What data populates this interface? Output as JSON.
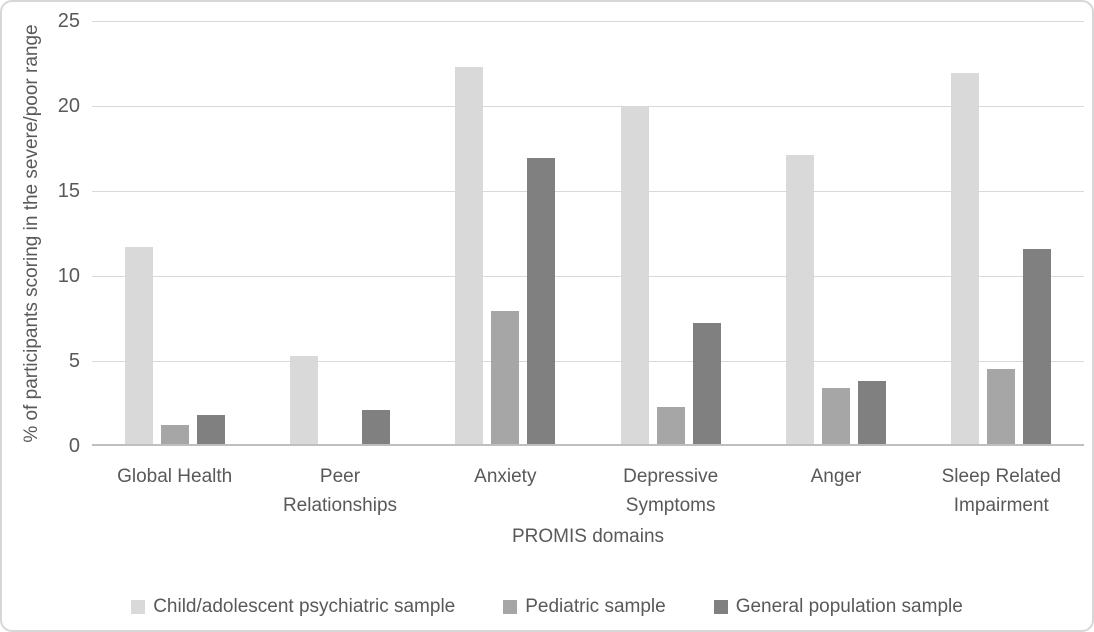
{
  "chart_data": {
    "type": "bar",
    "title": "",
    "xlabel": "PROMIS domains",
    "ylabel": "% of participants scoring in the severe/poor range",
    "ylim": [
      0,
      25
    ],
    "yticks": [
      0,
      5,
      10,
      15,
      20,
      25
    ],
    "grid": "horizontal",
    "legend_position": "bottom",
    "categories": [
      "Global Health",
      "Peer Relationships",
      "Anxiety",
      "Depressive Symptoms",
      "Anger",
      "Sleep Related Impairment"
    ],
    "series": [
      {
        "name": "Child/adolescent psychiatric sample",
        "color": "#d9d9d9",
        "values": [
          11.6,
          5.2,
          22.2,
          19.8,
          17.0,
          21.8
        ]
      },
      {
        "name": "Pediatric sample",
        "color": "#a6a6a6",
        "values": [
          1.1,
          0,
          7.8,
          2.2,
          3.3,
          4.4
        ]
      },
      {
        "name": "General population sample",
        "color": "#808080",
        "values": [
          1.7,
          2.0,
          16.8,
          7.1,
          3.7,
          11.5
        ]
      }
    ],
    "colors": {
      "text": "#595959",
      "gridline": "#d9d9d9",
      "axis_line": "#bfbfbf",
      "card_border": "#d7d7d7"
    }
  }
}
